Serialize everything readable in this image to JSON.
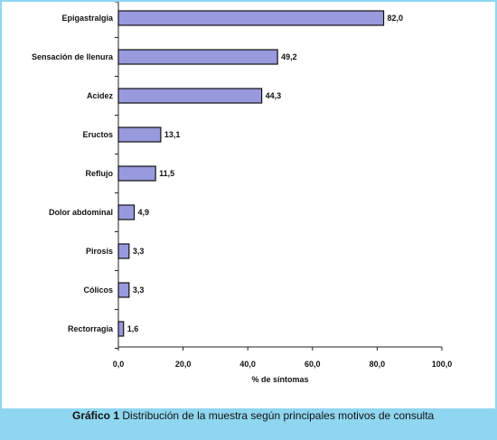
{
  "chart_data": {
    "type": "bar",
    "orientation": "horizontal",
    "categories": [
      "Epigastralgia",
      "Sensación de llenura",
      "Acidez",
      "Eructos",
      "Reflujo",
      "Dolor abdominal",
      "Pirosis",
      "Cólicos",
      "Rectorragia"
    ],
    "values": [
      82.0,
      49.2,
      44.3,
      13.1,
      11.5,
      4.9,
      3.3,
      3.3,
      1.6
    ],
    "value_labels": [
      "82,0",
      "49,2",
      "44,3",
      "13,1",
      "11,5",
      "4,9",
      "3,3",
      "3,3",
      "1,6"
    ],
    "xlabel": "% de síntomas",
    "xlim": [
      0,
      100
    ],
    "xticks": [
      "0,0",
      "20,0",
      "40,0",
      "60,0",
      "80,0",
      "100,0"
    ],
    "grid": false,
    "bar_color": "#9999dd"
  },
  "caption": {
    "label": "Gráfico 1",
    "text": " Distribución de la muestra según principales motivos de consulta"
  }
}
